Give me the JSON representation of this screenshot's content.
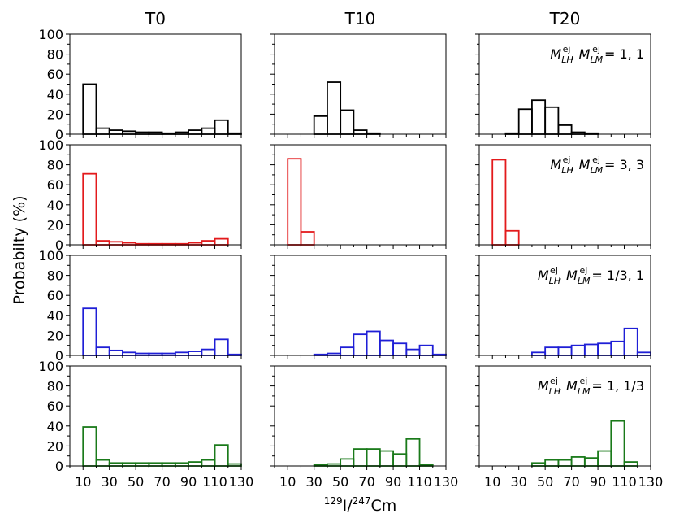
{
  "chart_data": {
    "type": "histogram-grid",
    "column_titles": [
      "T0",
      "T10",
      "T20"
    ],
    "ylabel": "Probabilty (%)",
    "xlabel": {
      "sup1": "129",
      "base1": "I/",
      "sup2": "247",
      "base2": "Cm"
    },
    "xlim": [
      0,
      130
    ],
    "ylim": [
      0,
      100
    ],
    "bin_edges": [
      10,
      20,
      30,
      40,
      50,
      60,
      70,
      80,
      90,
      100,
      110,
      120,
      130
    ],
    "xticks": [
      "10",
      "30",
      "50",
      "70",
      "90",
      "110",
      "130"
    ],
    "yticks": [
      "0",
      "20",
      "40",
      "60",
      "80",
      "100"
    ],
    "rows": [
      {
        "color": "#000000",
        "label": {
          "base": "M",
          "sub1": "LH",
          "sup": "ej",
          "sub2": "LM",
          "ratio": " = 1, 1"
        },
        "series": [
          {
            "name": "T0",
            "values": [
              50,
              6,
              4,
              3,
              2,
              2,
              1,
              2,
              4,
              6,
              14,
              1
            ]
          },
          {
            "name": "T10",
            "values": [
              0,
              0,
              18,
              52,
              24,
              4,
              1,
              0,
              0,
              0,
              0,
              0
            ]
          },
          {
            "name": "T20",
            "values": [
              0,
              1,
              25,
              34,
              27,
              9,
              2,
              1,
              0,
              0,
              0,
              0
            ]
          }
        ]
      },
      {
        "color": "#e31a1c",
        "label": {
          "base": "M",
          "sub1": "LH",
          "sup": "ej",
          "sub2": "LM",
          "ratio": " = 3, 3"
        },
        "series": [
          {
            "name": "T0",
            "values": [
              71,
              4,
              3,
              2,
              1,
              1,
              1,
              1,
              2,
              4,
              6,
              0
            ]
          },
          {
            "name": "T10",
            "values": [
              86,
              13,
              0,
              0,
              0,
              0,
              0,
              0,
              0,
              0,
              0,
              0
            ]
          },
          {
            "name": "T20",
            "values": [
              85,
              14,
              0,
              0,
              0,
              0,
              0,
              0,
              0,
              0,
              0,
              0
            ]
          }
        ]
      },
      {
        "color": "#1f1fd6",
        "label": {
          "base": "M",
          "sub1": "LH",
          "sup": "ej",
          "sub2": "LM",
          "ratio": " = 1/3, 1"
        },
        "series": [
          {
            "name": "T0",
            "values": [
              47,
              8,
              5,
              3,
              2,
              2,
              2,
              3,
              4,
              6,
              16,
              1
            ]
          },
          {
            "name": "T10",
            "values": [
              0,
              0,
              1,
              2,
              8,
              21,
              24,
              15,
              12,
              6,
              10,
              1
            ]
          },
          {
            "name": "T20",
            "values": [
              0,
              0,
              0,
              3,
              8,
              8,
              10,
              11,
              12,
              14,
              27,
              3
            ]
          }
        ]
      },
      {
        "color": "#1a7a1a",
        "label": {
          "base": "M",
          "sub1": "LH",
          "sup": "ej",
          "sub2": "LM",
          "ratio": " = 1, 1/3"
        },
        "series": [
          {
            "name": "T0",
            "values": [
              39,
              6,
              3,
              3,
              3,
              3,
              3,
              3,
              4,
              6,
              21,
              2
            ]
          },
          {
            "name": "T10",
            "values": [
              0,
              0,
              1,
              2,
              7,
              17,
              17,
              15,
              12,
              27,
              1,
              0
            ]
          },
          {
            "name": "T20",
            "values": [
              0,
              0,
              0,
              3,
              6,
              6,
              9,
              8,
              15,
              45,
              4,
              0
            ]
          }
        ]
      }
    ]
  }
}
